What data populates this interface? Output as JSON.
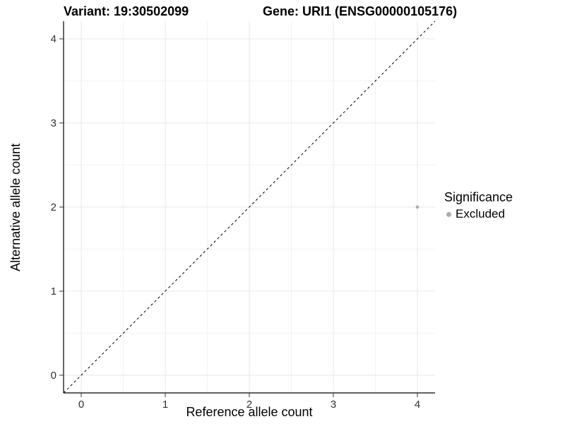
{
  "figure": {
    "title_left": "Variant: 19:30502099",
    "title_right": "Gene: URI1 (ENSG00000105176)"
  },
  "chart_data": {
    "type": "scatter",
    "xlabel": "Reference allele count",
    "ylabel": "Alternative allele count",
    "xlim": [
      -0.21,
      4.21
    ],
    "ylim": [
      -0.21,
      4.21
    ],
    "xticks": [
      0,
      1,
      2,
      3,
      4
    ],
    "yticks": [
      0,
      1,
      2,
      3,
      4
    ],
    "minor_ticks": [
      0.5,
      1.5,
      2.5,
      3.5
    ],
    "grid": "major+minor",
    "identity_line": {
      "style": "dashed",
      "from": [
        -0.21,
        -0.21
      ],
      "to": [
        4.21,
        4.21
      ],
      "color": "#000000"
    },
    "series": [
      {
        "name": "Excluded",
        "color": "#ababab",
        "point_radius": 2.3,
        "points": [
          {
            "x": 4,
            "y": 2
          }
        ]
      }
    ],
    "legend": {
      "title": "Significance",
      "position": "right",
      "items": [
        {
          "label": "Excluded",
          "color": "#ababab"
        }
      ]
    },
    "colors": {
      "background": "#ffffff",
      "grid_major": "#e7e7e7",
      "grid_minor": "#f2f2f2",
      "axis_line": "#000000",
      "tick_mark": "#333333",
      "tick_text": "#303030"
    }
  }
}
